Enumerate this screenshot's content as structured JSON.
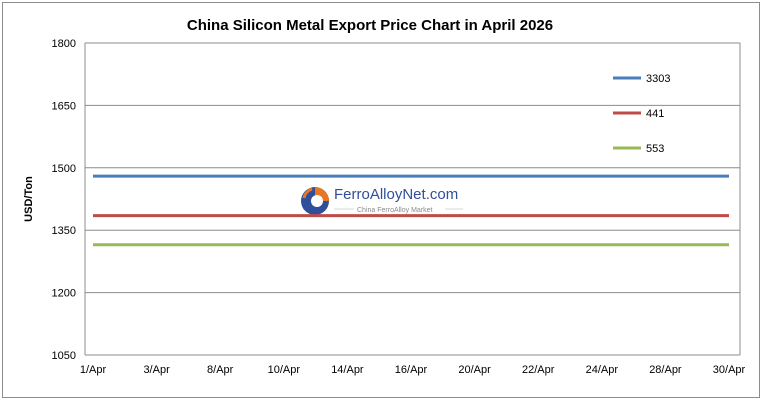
{
  "chart_data": {
    "type": "line",
    "title": "China Silicon Metal Export Price Chart in April 2026",
    "ylabel": "USD/Ton",
    "xlabel": "",
    "ylim": [
      1050,
      1800
    ],
    "yticks": [
      1050,
      1200,
      1350,
      1500,
      1650,
      1800
    ],
    "grid": true,
    "legend_position": "right",
    "categories": [
      "1/Apr",
      "3/Apr",
      "8/Apr",
      "10/Apr",
      "14/Apr",
      "16/Apr",
      "20/Apr",
      "22/Apr",
      "24/Apr",
      "28/Apr",
      "30/Apr"
    ],
    "series": [
      {
        "name": "3303",
        "color": "#4a7ebb",
        "values": [
          1480,
          1480,
          1480,
          1480,
          1480,
          1480,
          1480,
          1480,
          1480,
          1480,
          1480
        ]
      },
      {
        "name": "441",
        "color": "#be4b48",
        "values": [
          1385,
          1385,
          1385,
          1385,
          1385,
          1385,
          1385,
          1385,
          1385,
          1385,
          1385
        ]
      },
      {
        "name": "553",
        "color": "#98b954",
        "values": [
          1315,
          1315,
          1315,
          1315,
          1315,
          1315,
          1315,
          1315,
          1315,
          1315,
          1315
        ]
      }
    ]
  },
  "watermark": {
    "name": "FerroAlloyNet.com",
    "tagline": "China FerroAlloy Market",
    "logo_colors": [
      "#e87722",
      "#2f4f9a"
    ]
  }
}
